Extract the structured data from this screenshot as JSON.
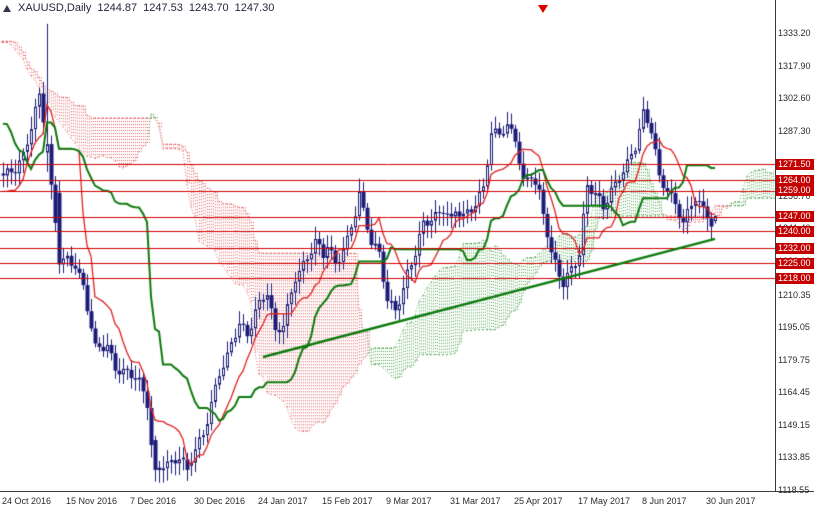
{
  "title": {
    "symbol_period": "XAUUSD,Daily",
    "open": "1244.87",
    "high": "1247.53",
    "low": "1243.70",
    "close": "1247.30"
  },
  "colors": {
    "candle": "#1c1c78",
    "candle_up_fill": "#ffffff",
    "tenkan": "#e02020",
    "kijun": "#0e7a0e",
    "trendline": "#0e7a0e",
    "cloud_up": "#4aa04a",
    "cloud_down": "#e06060",
    "level_line": "#d00000",
    "level_chip_bg": "#c40000"
  },
  "axes": {
    "price_ticks": [
      {
        "label": "1333.20",
        "price": 1333.2
      },
      {
        "label": "1317.90",
        "price": 1317.9
      },
      {
        "label": "1302.60",
        "price": 1302.6
      },
      {
        "label": "1287.30",
        "price": 1287.3
      },
      {
        "label": "1272.00",
        "price": 1272.0
      },
      {
        "label": "1256.70",
        "price": 1256.7
      },
      {
        "label": "1241.40",
        "price": 1241.4
      },
      {
        "label": "1226.10",
        "price": 1226.1
      },
      {
        "label": "1210.35",
        "price": 1210.35
      },
      {
        "label": "1195.05",
        "price": 1195.05
      },
      {
        "label": "1179.75",
        "price": 1179.75
      },
      {
        "label": "1164.45",
        "price": 1164.45
      },
      {
        "label": "1149.15",
        "price": 1149.15
      },
      {
        "label": "1133.85",
        "price": 1133.85
      },
      {
        "label": "1118.55",
        "price": 1118.55
      }
    ],
    "price_levels": [
      {
        "label": "1271.50",
        "price": 1271.5
      },
      {
        "label": "1264.00",
        "price": 1264.0
      },
      {
        "label": "1259.00",
        "price": 1259.0
      },
      {
        "label": "1247.00",
        "price": 1247.0
      },
      {
        "label": "1240.00",
        "price": 1240.0
      },
      {
        "label": "1232.00",
        "price": 1232.0
      },
      {
        "label": "1225.00",
        "price": 1225.0
      },
      {
        "label": "1218.00",
        "price": 1218.0
      }
    ],
    "time_labels": [
      {
        "label": "24 Oct 2016",
        "bar": 0
      },
      {
        "label": "15 Nov 2016",
        "bar": 16
      },
      {
        "label": "7 Dec 2016",
        "bar": 32
      },
      {
        "label": "30 Dec 2016",
        "bar": 48
      },
      {
        "label": "24 Jan 2017",
        "bar": 64
      },
      {
        "label": "15 Feb 2017",
        "bar": 80
      },
      {
        "label": "9 Mar 2017",
        "bar": 96
      },
      {
        "label": "31 Mar 2017",
        "bar": 112
      },
      {
        "label": "25 Apr 2017",
        "bar": 128
      },
      {
        "label": "17 May 2017",
        "bar": 144
      },
      {
        "label": "8 Jun 2017",
        "bar": 160
      },
      {
        "label": "30 Jun 2017",
        "bar": 176
      }
    ]
  },
  "chart_data": {
    "type": "candlestick",
    "symbol": "XAUUSD",
    "timeframe": "Daily",
    "bars": 179,
    "history_start": -80,
    "current_ohlc": {
      "open": 1244.87,
      "high": 1247.53,
      "low": 1243.7,
      "close": 1247.3
    },
    "y_axis": {
      "min": 1118.55,
      "max": 1333.2,
      "tick_step": 15.3
    },
    "x_axis": {
      "first_label": "24 Oct 2016",
      "last_label": "30 Jun 2017",
      "label_every_bars": 16
    },
    "close_anchors_history": [
      [
        -80,
        1345
      ],
      [
        -70,
        1320
      ],
      [
        -60,
        1342
      ],
      [
        -50,
        1330
      ],
      [
        -40,
        1315
      ],
      [
        -30,
        1337
      ],
      [
        -26,
        1335
      ],
      [
        -22,
        1308
      ],
      [
        -14,
        1262
      ],
      [
        -10,
        1258
      ],
      [
        -5,
        1252
      ],
      [
        -1,
        1268
      ]
    ],
    "close_anchors_visible": [
      [
        0,
        1265
      ],
      [
        3,
        1270
      ],
      [
        5,
        1277
      ],
      [
        9,
        1303
      ],
      [
        11,
        1281
      ],
      [
        13,
        1258
      ],
      [
        14,
        1227
      ],
      [
        16,
        1228
      ],
      [
        18,
        1225
      ],
      [
        20,
        1213
      ],
      [
        23,
        1184
      ],
      [
        26,
        1187
      ],
      [
        28,
        1177
      ],
      [
        32,
        1172
      ],
      [
        34,
        1168
      ],
      [
        36,
        1159
      ],
      [
        37,
        1140
      ],
      [
        38,
        1128
      ],
      [
        40,
        1132
      ],
      [
        42,
        1131
      ],
      [
        44,
        1133
      ],
      [
        46,
        1128
      ],
      [
        48,
        1138
      ],
      [
        50,
        1146
      ],
      [
        52,
        1160
      ],
      [
        54,
        1173
      ],
      [
        56,
        1180
      ],
      [
        59,
        1197
      ],
      [
        61,
        1192
      ],
      [
        63,
        1204
      ],
      [
        65,
        1209
      ],
      [
        66,
        1211
      ],
      [
        68,
        1191
      ],
      [
        70,
        1196
      ],
      [
        73,
        1220
      ],
      [
        75,
        1225
      ],
      [
        78,
        1234
      ],
      [
        80,
        1228
      ],
      [
        81,
        1233
      ],
      [
        83,
        1225
      ],
      [
        86,
        1237
      ],
      [
        88,
        1249
      ],
      [
        89,
        1257
      ],
      [
        90,
        1248
      ],
      [
        92,
        1234
      ],
      [
        94,
        1230
      ],
      [
        96,
        1209
      ],
      [
        98,
        1204
      ],
      [
        100,
        1212
      ],
      [
        101,
        1219
      ],
      [
        103,
        1229
      ],
      [
        105,
        1244
      ],
      [
        107,
        1247
      ],
      [
        110,
        1251
      ],
      [
        112,
        1244
      ],
      [
        113,
        1249
      ],
      [
        115,
        1246
      ],
      [
        118,
        1254
      ],
      [
        120,
        1262
      ],
      [
        122,
        1286
      ],
      [
        124,
        1285
      ],
      [
        126,
        1288
      ],
      [
        128,
        1284
      ],
      [
        130,
        1264
      ],
      [
        132,
        1268
      ],
      [
        134,
        1257
      ],
      [
        136,
        1238
      ],
      [
        137,
        1228
      ],
      [
        139,
        1220
      ],
      [
        140,
        1216
      ],
      [
        142,
        1224
      ],
      [
        144,
        1230
      ],
      [
        145,
        1246
      ],
      [
        146,
        1261
      ],
      [
        148,
        1256
      ],
      [
        150,
        1251
      ],
      [
        152,
        1260
      ],
      [
        154,
        1267
      ],
      [
        156,
        1272
      ],
      [
        158,
        1279
      ],
      [
        160,
        1294
      ],
      [
        162,
        1288
      ],
      [
        163,
        1278
      ],
      [
        164,
        1266
      ],
      [
        166,
        1261
      ],
      [
        168,
        1252
      ],
      [
        170,
        1243
      ],
      [
        171,
        1247
      ],
      [
        173,
        1256
      ],
      [
        175,
        1251
      ],
      [
        176,
        1249
      ],
      [
        177,
        1245
      ],
      [
        178,
        1247.3
      ]
    ],
    "bar_overrides": {
      "11": [
        1277,
        1337.5,
        1268,
        1281
      ],
      "12": [
        1281,
        1285,
        1255,
        1262
      ],
      "13": [
        1262,
        1266,
        1240,
        1244
      ],
      "38": [
        1142,
        1144,
        1122.5,
        1128
      ],
      "46": [
        1133,
        1136,
        1122.8,
        1128
      ],
      "178": [
        1244.87,
        1247.53,
        1243.7,
        1247.3
      ]
    },
    "synthesis": {
      "a1": 2.2,
      "f1": 1.7,
      "a2": 1.4,
      "f2": 0.55,
      "range_min": 1.4,
      "range_var": 4.5
    },
    "horizontal_levels": [
      1271.5,
      1264.0,
      1259.0,
      1247.0,
      1240.0,
      1232.0,
      1225.0,
      1218.0
    ],
    "trendline": {
      "bar1": 65,
      "price1": 1181,
      "bar2": 178,
      "price2": 1236.5
    },
    "indicators": {
      "ichimoku": {
        "tenkan": 9,
        "kijun": 26,
        "senkou_b": 52,
        "shift": 26
      }
    },
    "sell_marker_bar": 135
  }
}
